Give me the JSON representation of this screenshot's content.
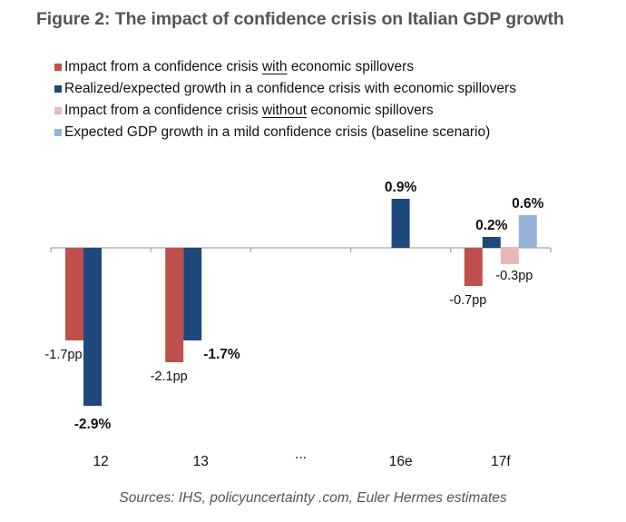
{
  "title": "Figure 2: The impact of confidence crisis on Italian GDP growth",
  "source": "Sources: IHS, policyuncertainty .com, Euler Hermes estimates",
  "legend": [
    {
      "pre": "Impact from a confidence crisis ",
      "u": "with",
      "post": " economic spillovers",
      "color": "#c0504d"
    },
    {
      "pre": "Realized/expected growth in a confidence crisis with economic spillovers",
      "u": "",
      "post": "",
      "color": "#1f497d"
    },
    {
      "pre": "Impact from a confidence crisis ",
      "u": "without",
      "post": " economic spillovers",
      "color": "#e6b9b8"
    },
    {
      "pre": "Expected GDP growth in a mild confidence crisis (baseline scenario)",
      "u": "",
      "post": "",
      "color": "#95b3d7"
    }
  ],
  "chart_data": {
    "type": "bar",
    "title": "Figure 2: The impact of confidence crisis on Italian GDP growth",
    "xlabel": "",
    "ylabel": "",
    "categories": [
      "12",
      "13",
      "...",
      "16e",
      "17f"
    ],
    "ylim": [
      -3.0,
      1.0
    ],
    "grid": false,
    "legend_position": "top-left",
    "series": [
      {
        "name": "Impact from a confidence crisis with economic spillovers",
        "color": "#c0504d",
        "values": [
          -1.7,
          -2.1,
          null,
          null,
          -0.7
        ],
        "labels": [
          "-1.7pp",
          "-2.1pp",
          null,
          null,
          "-0.7pp"
        ],
        "bold": false
      },
      {
        "name": "Realized/expected growth in a confidence crisis with economic spillovers",
        "color": "#1f497d",
        "values": [
          -2.9,
          -1.7,
          null,
          0.9,
          0.2
        ],
        "labels": [
          "-2.9%",
          "-1.7%",
          null,
          "0.9%",
          "0.2%"
        ],
        "bold": true
      },
      {
        "name": "Impact from a confidence crisis without economic spillovers",
        "color": "#e6b9b8",
        "values": [
          null,
          null,
          null,
          null,
          -0.3
        ],
        "labels": [
          null,
          null,
          null,
          null,
          "-0.3pp"
        ],
        "bold": false
      },
      {
        "name": "Expected GDP growth in a mild confidence crisis (baseline scenario)",
        "color": "#95b3d7",
        "values": [
          null,
          null,
          null,
          null,
          0.6
        ],
        "labels": [
          null,
          null,
          null,
          null,
          "0.6%"
        ],
        "bold": true
      }
    ]
  }
}
